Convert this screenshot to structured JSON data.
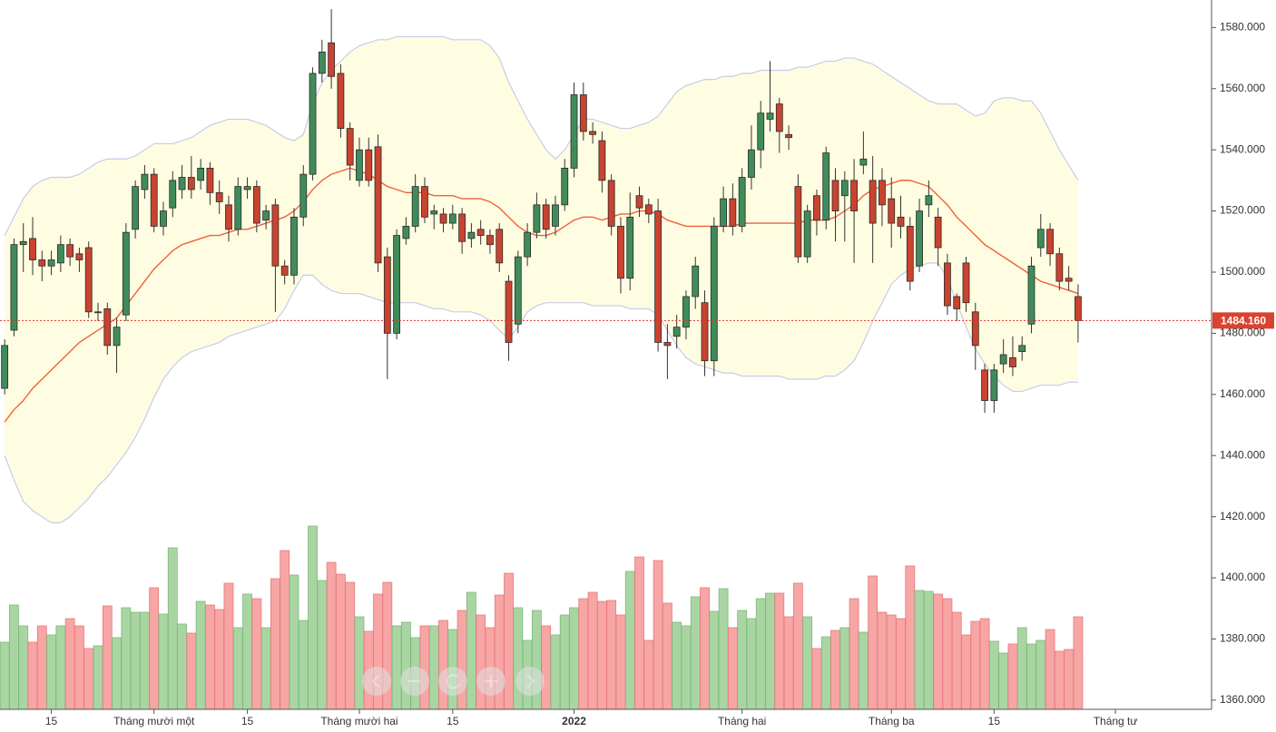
{
  "chart_data": {
    "type": "candlestick",
    "ylim": [
      1357,
      1589
    ],
    "yticks": [
      {
        "value": 1360,
        "label": "1360.000"
      },
      {
        "value": 1380,
        "label": "1380.000"
      },
      {
        "value": 1400,
        "label": "1400.000"
      },
      {
        "value": 1420,
        "label": "1420.000"
      },
      {
        "value": 1440,
        "label": "1440.000"
      },
      {
        "value": 1460,
        "label": "1460.000"
      },
      {
        "value": 1480,
        "label": "1480.000"
      },
      {
        "value": 1500,
        "label": "1500.000"
      },
      {
        "value": 1520,
        "label": "1520.000"
      },
      {
        "value": 1540,
        "label": "1540.000"
      },
      {
        "value": 1560,
        "label": "1560.000"
      },
      {
        "value": 1580,
        "label": "1580.000"
      }
    ],
    "xlim": [
      -0.5,
      129.3
    ],
    "xticks": [
      {
        "value": 5,
        "label": "15"
      },
      {
        "value": 16,
        "label": "Tháng mười một"
      },
      {
        "value": 26,
        "label": "15"
      },
      {
        "value": 38,
        "label": "Tháng mười hai"
      },
      {
        "value": 48,
        "label": "15"
      },
      {
        "value": 61,
        "label": "2022"
      },
      {
        "value": 79,
        "label": "Tháng hai"
      },
      {
        "value": 95,
        "label": "Tháng ba"
      },
      {
        "value": 106,
        "label": "15"
      },
      {
        "value": 119,
        "label": "Tháng tư"
      }
    ],
    "current_price": {
      "value": 1484.16,
      "label": "1484.160"
    },
    "up_color": "#3f8c5a",
    "down_color": "#c9432f",
    "open": [
      1462,
      1481,
      1509,
      1511,
      1504,
      1502,
      1503,
      1509,
      1506,
      1508,
      1487,
      1488,
      1476,
      1486,
      1514,
      1527,
      1532,
      1515,
      1521,
      1527,
      1531,
      1530,
      1534,
      1526,
      1522,
      1514,
      1527,
      1528,
      1517,
      1522,
      1502,
      1499,
      1518,
      1532,
      1565,
      1575,
      1565,
      1547,
      1530,
      1540,
      1541,
      1505,
      1480,
      1511,
      1515,
      1528,
      1519,
      1519,
      1516,
      1519,
      1511,
      1514,
      1512,
      1514,
      1497,
      1483,
      1505,
      1513,
      1522,
      1515,
      1522,
      1534,
      1558,
      1546,
      1543,
      1530,
      1515,
      1498,
      1525,
      1522,
      1520,
      1477,
      1479,
      1482,
      1492,
      1490,
      1471,
      1515,
      1524,
      1515,
      1531,
      1540,
      1550,
      1555,
      1545,
      1528,
      1505,
      1525,
      1517,
      1530,
      1525,
      1530,
      1535,
      1530,
      1530,
      1524,
      1518,
      1515,
      1502,
      1522,
      1518,
      1503,
      1492,
      1503,
      1487,
      1468,
      1458,
      1470,
      1472,
      1474,
      1483,
      1508,
      1514,
      1506,
      1498,
      1492
    ],
    "high": [
      1478,
      1511,
      1516,
      1518,
      1507,
      1507,
      1512,
      1511,
      1508,
      1510,
      1490,
      1490,
      1485,
      1516,
      1530,
      1535,
      1534,
      1523,
      1533,
      1535,
      1538,
      1537,
      1536,
      1530,
      1525,
      1531,
      1531,
      1530,
      1522,
      1524,
      1504,
      1521,
      1535,
      1567,
      1576,
      1586,
      1568,
      1549,
      1544,
      1544,
      1545,
      1508,
      1514,
      1518,
      1532,
      1531,
      1522,
      1521,
      1522,
      1521,
      1516,
      1517,
      1514,
      1516,
      1499,
      1507,
      1516,
      1526,
      1524,
      1525,
      1537,
      1562,
      1562,
      1549,
      1546,
      1532,
      1518,
      1526,
      1528,
      1524,
      1524,
      1483,
      1486,
      1494,
      1505,
      1494,
      1518,
      1528,
      1529,
      1534,
      1548,
      1556,
      1569,
      1557,
      1548,
      1532,
      1522,
      1527,
      1541,
      1534,
      1533,
      1537,
      1546,
      1538,
      1534,
      1531,
      1525,
      1518,
      1524,
      1530,
      1521,
      1506,
      1493,
      1505,
      1490,
      1470,
      1470,
      1478,
      1479,
      1479,
      1505,
      1519,
      1516,
      1508,
      1502,
      1496
    ],
    "low": [
      1460,
      1479,
      1500,
      1499,
      1497,
      1499,
      1500,
      1502,
      1500,
      1485,
      1484,
      1473,
      1467,
      1484,
      1511,
      1524,
      1513,
      1512,
      1518,
      1524,
      1524,
      1527,
      1522,
      1519,
      1510,
      1512,
      1524,
      1513,
      1514,
      1487,
      1496,
      1496,
      1515,
      1530,
      1562,
      1560,
      1544,
      1530,
      1528,
      1528,
      1500,
      1465,
      1478,
      1509,
      1513,
      1516,
      1514,
      1513,
      1514,
      1506,
      1508,
      1509,
      1506,
      1500,
      1471,
      1480,
      1502,
      1511,
      1511,
      1512,
      1520,
      1531,
      1543,
      1542,
      1526,
      1512,
      1493,
      1494,
      1518,
      1516,
      1474,
      1465,
      1475,
      1478,
      1488,
      1466,
      1466,
      1513,
      1512,
      1513,
      1527,
      1534,
      1546,
      1539,
      1540,
      1503,
      1503,
      1512,
      1514,
      1510,
      1510,
      1503,
      1532,
      1503,
      1515,
      1508,
      1511,
      1494,
      1500,
      1518,
      1502,
      1486,
      1484,
      1487,
      1468,
      1454,
      1454,
      1467,
      1466,
      1471,
      1480,
      1505,
      1502,
      1494,
      1494,
      1477
    ],
    "close": [
      1476,
      1509,
      1510,
      1504,
      1502,
      1504,
      1509,
      1505,
      1504,
      1487,
      1487,
      1476,
      1482,
      1513,
      1528,
      1532,
      1515,
      1520,
      1530,
      1531,
      1527,
      1534,
      1526,
      1523,
      1514,
      1528,
      1528,
      1516,
      1520,
      1502,
      1499,
      1518,
      1532,
      1565,
      1572,
      1564,
      1547,
      1535,
      1540,
      1530,
      1503,
      1480,
      1512,
      1515,
      1528,
      1518,
      1520,
      1516,
      1519,
      1510,
      1513,
      1512,
      1509,
      1503,
      1477,
      1505,
      1513,
      1522,
      1514,
      1522,
      1534,
      1558,
      1546,
      1545,
      1530,
      1515,
      1498,
      1518,
      1521,
      1519,
      1477,
      1476,
      1482,
      1492,
      1502,
      1471,
      1515,
      1524,
      1515,
      1531,
      1540,
      1552,
      1552,
      1546,
      1544,
      1505,
      1520,
      1517,
      1539,
      1520,
      1530,
      1520,
      1537,
      1516,
      1522,
      1516,
      1515,
      1497,
      1520,
      1525,
      1508,
      1489,
      1488,
      1490,
      1476,
      1458,
      1468,
      1473,
      1469,
      1476,
      1502,
      1514,
      1506,
      1497,
      1497,
      1484.16
    ],
    "volume": [
      74,
      115,
      92,
      74,
      92,
      82,
      92,
      100,
      92,
      67,
      70,
      114,
      79,
      112,
      107,
      107,
      134,
      105,
      178,
      94,
      84,
      119,
      115,
      110,
      139,
      90,
      127,
      122,
      90,
      144,
      175,
      148,
      98,
      202,
      142,
      162,
      149,
      140,
      102,
      86,
      127,
      140,
      92,
      96,
      79,
      92,
      92,
      98,
      88,
      109,
      129,
      104,
      90,
      126,
      150,
      112,
      76,
      109,
      92,
      82,
      104,
      112,
      122,
      129,
      119,
      120,
      104,
      152,
      168,
      76,
      164,
      117,
      96,
      92,
      124,
      134,
      108,
      133,
      90,
      109,
      100,
      122,
      128,
      128,
      102,
      139,
      102,
      67,
      80,
      87,
      90,
      122,
      85,
      147,
      107,
      104,
      100,
      158,
      131,
      130,
      127,
      122,
      107,
      82,
      97,
      100,
      75,
      62,
      72,
      90,
      72,
      76,
      88,
      64,
      66,
      102
    ],
    "ma": [
      1451,
      1455,
      1458,
      1462,
      1465,
      1468,
      1471,
      1474,
      1477,
      1479,
      1481,
      1483,
      1485,
      1489,
      1493,
      1497,
      1501,
      1504,
      1507,
      1509,
      1510,
      1511,
      1512,
      1512,
      1513,
      1514,
      1514,
      1515,
      1516,
      1517,
      1518,
      1520,
      1523,
      1527,
      1530,
      1532,
      1533,
      1534,
      1533,
      1532,
      1530,
      1528,
      1527,
      1526,
      1526,
      1526,
      1525,
      1525,
      1525,
      1524,
      1524,
      1524,
      1523,
      1521,
      1518,
      1515,
      1513,
      1512,
      1512,
      1513,
      1515,
      1517,
      1518,
      1518,
      1517,
      1518,
      1519,
      1519,
      1520,
      1520,
      1519,
      1517,
      1516,
      1515,
      1515,
      1515,
      1515,
      1515,
      1515,
      1516,
      1516,
      1516,
      1516,
      1516,
      1516,
      1516,
      1517,
      1517,
      1517,
      1518,
      1520,
      1522,
      1525,
      1527,
      1528,
      1529,
      1530,
      1530,
      1529,
      1528,
      1525,
      1522,
      1518,
      1515,
      1512,
      1509,
      1507,
      1505,
      1503,
      1501,
      1499,
      1497,
      1496,
      1495,
      1494,
      1493
    ],
    "upper": [
      1512,
      1518,
      1524,
      1528,
      1530,
      1531,
      1531,
      1531,
      1532,
      1534,
      1536,
      1537,
      1537,
      1537,
      1538,
      1540,
      1542,
      1542,
      1542,
      1543,
      1544,
      1546,
      1548,
      1549,
      1550,
      1550,
      1550,
      1549,
      1548,
      1546,
      1544,
      1543,
      1545,
      1555,
      1562,
      1566,
      1569,
      1572,
      1574,
      1575,
      1576,
      1576,
      1577,
      1577,
      1577,
      1577,
      1577,
      1577,
      1576,
      1576,
      1576,
      1576,
      1574,
      1570,
      1562,
      1556,
      1550,
      1545,
      1540,
      1537,
      1540,
      1545,
      1550,
      1550,
      1549,
      1548,
      1547,
      1547,
      1548,
      1549,
      1551,
      1555,
      1559,
      1561,
      1562,
      1563,
      1563,
      1564,
      1564,
      1565,
      1565,
      1566,
      1566,
      1566,
      1566,
      1567,
      1567,
      1568,
      1569,
      1569,
      1570,
      1570,
      1569,
      1568,
      1566,
      1564,
      1562,
      1560,
      1558,
      1556,
      1555,
      1555,
      1555,
      1553,
      1551,
      1552,
      1556,
      1557,
      1557,
      1556,
      1556,
      1552,
      1546,
      1540,
      1535,
      1530
    ],
    "lower": [
      1440,
      1432,
      1425,
      1422,
      1420,
      1418,
      1418,
      1420,
      1423,
      1426,
      1430,
      1433,
      1437,
      1441,
      1446,
      1452,
      1459,
      1465,
      1469,
      1472,
      1474,
      1475,
      1476,
      1477,
      1479,
      1480,
      1481,
      1482,
      1483,
      1484,
      1488,
      1494,
      1499,
      1499,
      1496,
      1494,
      1493,
      1493,
      1493,
      1492,
      1491,
      1490,
      1490,
      1490,
      1490,
      1489,
      1488,
      1488,
      1487,
      1487,
      1487,
      1486,
      1484,
      1481,
      1478,
      1482,
      1487,
      1489,
      1490,
      1490,
      1490,
      1490,
      1490,
      1489,
      1489,
      1489,
      1489,
      1488,
      1488,
      1488,
      1486,
      1481,
      1476,
      1472,
      1470,
      1469,
      1468,
      1467,
      1467,
      1466,
      1466,
      1466,
      1466,
      1466,
      1465,
      1465,
      1465,
      1465,
      1466,
      1466,
      1468,
      1471,
      1477,
      1484,
      1490,
      1496,
      1499,
      1501,
      1502,
      1503,
      1503,
      1498,
      1490,
      1482,
      1475,
      1470,
      1466,
      1463,
      1461,
      1461,
      1462,
      1463,
      1463,
      1463,
      1464,
      1464
    ]
  }
}
